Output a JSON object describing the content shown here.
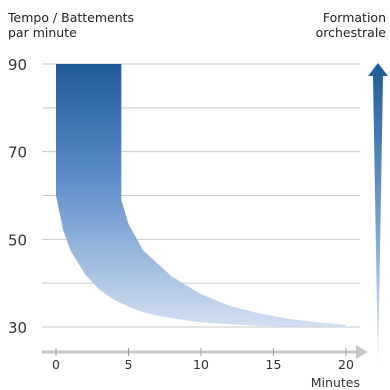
{
  "chart_data": {
    "type": "area",
    "ylabel": [
      "Tempo / Battements",
      "par minute"
    ],
    "xlabel": "Minutes",
    "right_label": [
      "Formation",
      "orchestrale"
    ],
    "yticks": [
      30,
      50,
      70,
      90
    ],
    "xticks": [
      0,
      5,
      10,
      15,
      20
    ],
    "ylim": [
      30,
      90
    ],
    "xlim": [
      0,
      20
    ],
    "grid": true,
    "series": [
      {
        "upper": {
          "x": [
            0,
            4.5,
            4.5,
            5,
            6,
            8,
            10,
            12,
            14,
            16,
            18,
            20
          ],
          "y": [
            90,
            90,
            59,
            53.5,
            47.5,
            41.5,
            37.5,
            34.8,
            33.1,
            31.9,
            31.1,
            30.5
          ]
        },
        "lower": {
          "x": [
            0,
            1,
            2,
            3,
            4,
            5,
            6,
            8,
            10,
            12,
            14,
            16,
            18,
            20
          ],
          "y": [
            90,
            90,
            90,
            90,
            90,
            90,
            90,
            90,
            90,
            90,
            90,
            90,
            90,
            90
          ]
        },
        "band": {
          "x": [
            0,
            0.5,
            1,
            2,
            3,
            4,
            5,
            6,
            7,
            8,
            9,
            10,
            12,
            14,
            16,
            18,
            20
          ],
          "y": [
            60,
            52,
            47.5,
            42,
            38.5,
            36.2,
            34.6,
            33.4,
            32.6,
            32,
            31.5,
            31.1,
            30.6,
            30.3,
            30.1,
            30.05,
            30
          ]
        }
      }
    ],
    "colors": {
      "dark": "#1f5a99",
      "light": "#d3e0f1",
      "grid": "#c9c9c9",
      "axis": "#c8c8c8"
    }
  }
}
